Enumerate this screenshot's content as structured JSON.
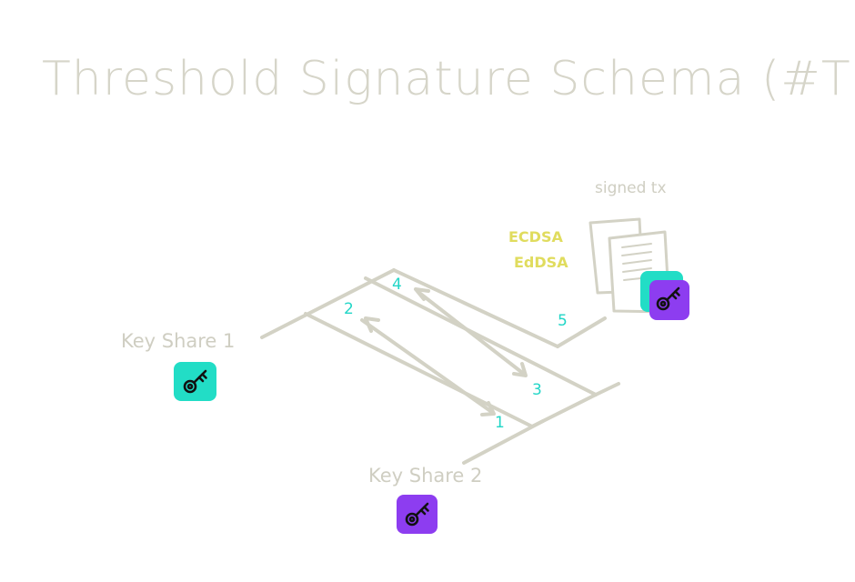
{
  "title": "Threshold Signature Schema (#TSS)",
  "labels": {
    "key_share_1": "Key Share 1",
    "key_share_2": "Key Share 2",
    "signed_tx": "signed tx"
  },
  "algorithms": [
    "ECDSA",
    "EdDSA"
  ],
  "steps": [
    "1",
    "2",
    "3",
    "4",
    "5"
  ],
  "colors": {
    "sketch_stroke": "#d3d2c5",
    "step_number": "#22d6c7",
    "algorithm_text": "#e0dc5e",
    "key_share_1": "#22ddc6",
    "key_share_2": "#8d3df0"
  },
  "icons": {
    "key_share_1": "key-icon",
    "key_share_2": "key-icon",
    "signed_tx": "document-icon",
    "combined_key": "key-icon"
  }
}
